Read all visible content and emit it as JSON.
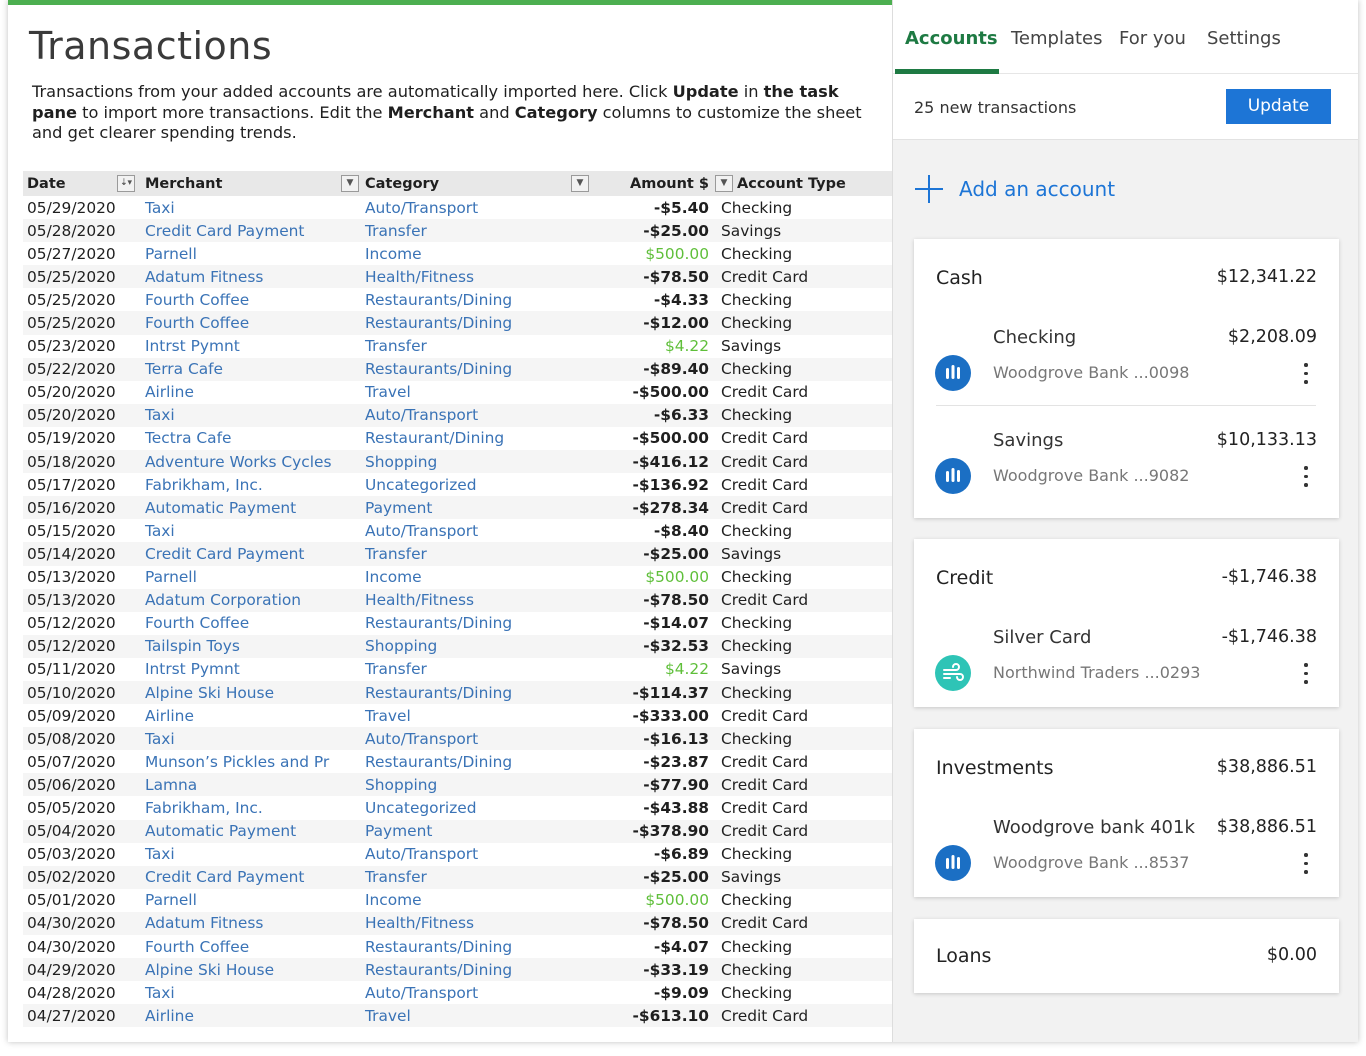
{
  "sheet": {
    "title": "Transactions",
    "intro": {
      "p1": "Transactions from your added accounts are automatically imported here. Click ",
      "b1": "Update",
      "p2": " in ",
      "b2": "the task pane",
      "p3": " to import more transactions. Edit the ",
      "b3": "Merchant",
      "p4": " and ",
      "b4": "Category",
      "p5": " columns to customize the sheet and get clearer spending trends."
    },
    "columns": [
      "Date",
      "Merchant",
      "Category",
      "Amount $",
      "Account Type"
    ],
    "rows": [
      [
        "05/29/2020",
        "Taxi",
        "Auto/Transport",
        "-$5.40",
        "Checking"
      ],
      [
        "05/28/2020",
        "Credit Card Payment",
        "Transfer",
        "-$25.00",
        "Savings"
      ],
      [
        "05/27/2020",
        "Parnell",
        "Income",
        "$500.00",
        "Checking"
      ],
      [
        "05/25/2020",
        "Adatum Fitness",
        "Health/Fitness",
        "-$78.50",
        "Credit Card"
      ],
      [
        "05/25/2020",
        "Fourth Coffee",
        "Restaurants/Dining",
        "-$4.33",
        "Checking"
      ],
      [
        "05/25/2020",
        "Fourth Coffee",
        "Restaurants/Dining",
        "-$12.00",
        "Checking"
      ],
      [
        "05/23/2020",
        "Intrst Pymnt",
        "Transfer",
        "$4.22",
        "Savings"
      ],
      [
        "05/22/2020",
        "Terra Cafe",
        "Restaurants/Dining",
        "-$89.40",
        "Checking"
      ],
      [
        "05/20/2020",
        "Airline",
        "Travel",
        "-$500.00",
        "Credit Card"
      ],
      [
        "05/20/2020",
        "Taxi",
        "Auto/Transport",
        "-$6.33",
        "Checking"
      ],
      [
        "05/19/2020",
        "Tectra Cafe",
        "Restaurant/Dining",
        "-$500.00",
        "Credit Card"
      ],
      [
        "05/18/2020",
        "Adventure Works Cycles",
        "Shopping",
        "-$416.12",
        "Credit Card"
      ],
      [
        "05/17/2020",
        "Fabrikham, Inc.",
        "Uncategorized",
        "-$136.92",
        "Credit Card"
      ],
      [
        "05/16/2020",
        "Automatic Payment",
        "Payment",
        "-$278.34",
        "Credit Card"
      ],
      [
        "05/15/2020",
        "Taxi",
        "Auto/Transport",
        "-$8.40",
        "Checking"
      ],
      [
        "05/14/2020",
        "Credit Card Payment",
        "Transfer",
        "-$25.00",
        "Savings"
      ],
      [
        "05/13/2020",
        "Parnell",
        "Income",
        "$500.00",
        "Checking"
      ],
      [
        "05/13/2020",
        "Adatum Corporation",
        "Health/Fitness",
        "-$78.50",
        "Credit Card"
      ],
      [
        "05/12/2020",
        "Fourth Coffee",
        "Restaurants/Dining",
        "-$14.07",
        "Checking"
      ],
      [
        "05/12/2020",
        "Tailspin Toys",
        "Shopping",
        "-$32.53",
        "Checking"
      ],
      [
        "05/11/2020",
        "Intrst Pymnt",
        "Transfer",
        "$4.22",
        "Savings"
      ],
      [
        "05/10/2020",
        "Alpine Ski House",
        "Restaurants/Dining",
        "-$114.37",
        "Checking"
      ],
      [
        "05/09/2020",
        "Airline",
        "Travel",
        "-$333.00",
        "Credit Card"
      ],
      [
        "05/08/2020",
        "Taxi",
        "Auto/Transport",
        "-$16.13",
        "Checking"
      ],
      [
        "05/07/2020",
        "Munson’s Pickles and Pr",
        "Restaurants/Dining",
        "-$23.87",
        "Credit Card"
      ],
      [
        "05/06/2020",
        "Lamna",
        "Shopping",
        "-$77.90",
        "Credit Card"
      ],
      [
        "05/05/2020",
        "Fabrikham, Inc.",
        "Uncategorized",
        "-$43.88",
        "Credit Card"
      ],
      [
        "05/04/2020",
        "Automatic Payment",
        "Payment",
        "-$378.90",
        "Credit Card"
      ],
      [
        "05/03/2020",
        "Taxi",
        "Auto/Transport",
        "-$6.89",
        "Checking"
      ],
      [
        "05/02/2020",
        "Credit Card Payment",
        "Transfer",
        "-$25.00",
        "Savings"
      ],
      [
        "05/01/2020",
        "Parnell",
        "Income",
        "$500.00",
        "Checking"
      ],
      [
        "04/30/2020",
        "Adatum Fitness",
        "Health/Fitness",
        "-$78.50",
        "Credit Card"
      ],
      [
        "04/30/2020",
        "Fourth Coffee",
        "Restaurants/Dining",
        "-$4.07",
        "Checking"
      ],
      [
        "04/29/2020",
        "Alpine Ski House",
        "Restaurants/Dining",
        "-$33.19",
        "Checking"
      ],
      [
        "04/28/2020",
        "Taxi",
        "Auto/Transport",
        "-$9.09",
        "Checking"
      ],
      [
        "04/27/2020",
        "Airline",
        "Travel",
        "-$613.10",
        "Credit Card"
      ]
    ],
    "colors": {
      "accent_bar": "#4caf50",
      "link": "#3a73b6",
      "positive": "#5fbf3a"
    }
  },
  "pane": {
    "tabs": [
      "Accounts",
      "Templates",
      "For you",
      "Settings"
    ],
    "active_tab": "Accounts",
    "new_transactions": "25 new transactions",
    "update_label": "Update",
    "add_account": "Add an account",
    "sections": {
      "cash": {
        "title": "Cash",
        "total": "$12,341.22",
        "accounts": [
          {
            "name": "Checking",
            "sub": "Woodgrove Bank ...0098",
            "balance": "$2,208.09",
            "icon": "bank-icon"
          },
          {
            "name": "Savings",
            "sub": "Woodgrove Bank ...9082",
            "balance": "$10,133.13",
            "icon": "bank-icon"
          }
        ]
      },
      "credit": {
        "title": "Credit",
        "total": "-$1,746.38",
        "accounts": [
          {
            "name": "Silver Card",
            "sub": "Northwind Traders ...0293",
            "balance": "-$1,746.38",
            "icon": "wind-icon"
          }
        ]
      },
      "investments": {
        "title": "Investments",
        "total": "$38,886.51",
        "accounts": [
          {
            "name": "Woodgrove bank 401k",
            "sub": "Woodgrove Bank ...8537",
            "balance": "$38,886.51",
            "icon": "bank-icon"
          }
        ]
      },
      "loans": {
        "title": "Loans",
        "total": "$0.00"
      }
    },
    "colors": {
      "accent": "#1e7a43",
      "button": "#1d75d6",
      "bank_icon": "#1b6fc4",
      "credit_icon": "#2ec4b6"
    }
  }
}
